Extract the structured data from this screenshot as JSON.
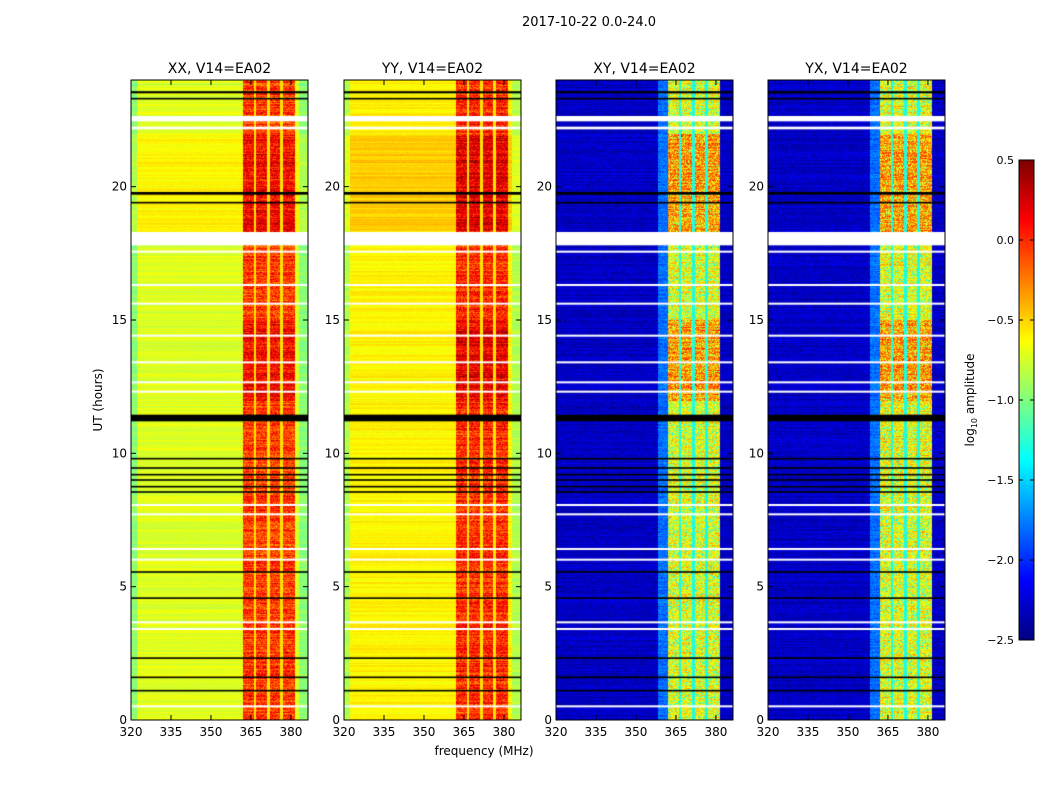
{
  "suptitle": "2017-10-22 0.0-24.0",
  "chart_data": {
    "type": "heatmap",
    "xlabel": "frequency (MHz)",
    "ylabel": "UT (hours)",
    "xlim": [
      320,
      386.4
    ],
    "ylim": [
      0,
      24
    ],
    "xticks": [
      320,
      335,
      350,
      365,
      380
    ],
    "xtick_labels": [
      "320",
      "335",
      "350",
      "365",
      "380"
    ],
    "yticks": [
      0,
      5,
      10,
      15,
      20
    ],
    "ytick_labels": [
      "0",
      "5",
      "10",
      "15",
      "20"
    ],
    "panels": [
      {
        "title": "XX, V14=EA02",
        "base_level": -0.72,
        "band_level": -0.05,
        "quiet_base": true
      },
      {
        "title": "YY, V14=EA02",
        "base_level": -0.6,
        "band_level": 0.0,
        "quiet_base": true
      },
      {
        "title": "XY, V14=EA02",
        "base_level": -2.3,
        "band_level": -0.6,
        "quiet_base": false
      },
      {
        "title": "YX, V14=EA02",
        "base_level": -2.3,
        "band_level": -0.6,
        "quiet_base": false
      }
    ],
    "band_MHz": [
      362,
      381.5
    ],
    "band_gaps_MHz": [
      366.3,
      371.3,
      376.2
    ],
    "flagged_hours_white": [
      [
        22.45,
        22.65
      ],
      [
        22.15,
        22.25
      ],
      [
        17.8,
        18.3
      ],
      [
        17.55,
        17.6
      ],
      [
        16.3,
        16.35
      ],
      [
        15.6,
        15.65
      ],
      [
        14.4,
        14.45
      ],
      [
        13.4,
        13.45
      ],
      [
        12.65,
        12.7
      ],
      [
        12.3,
        12.35
      ],
      [
        8.05,
        8.1
      ],
      [
        7.7,
        7.75
      ],
      [
        6.4,
        6.45
      ],
      [
        6.0,
        6.05
      ],
      [
        3.65,
        3.7
      ],
      [
        3.4,
        3.45
      ],
      [
        0.5,
        0.55
      ]
    ],
    "flagged_hours_black": [
      [
        23.5,
        23.58
      ],
      [
        23.27,
        23.33
      ],
      [
        19.7,
        19.8
      ],
      [
        19.37,
        19.43
      ],
      [
        11.2,
        11.45
      ],
      [
        9.77,
        9.83
      ],
      [
        9.42,
        9.48
      ],
      [
        9.17,
        9.23
      ],
      [
        8.97,
        9.03
      ],
      [
        8.72,
        8.78
      ],
      [
        8.52,
        8.58
      ],
      [
        5.52,
        5.58
      ],
      [
        4.54,
        4.6
      ],
      [
        2.29,
        2.35
      ],
      [
        1.57,
        1.63
      ],
      [
        1.07,
        1.13
      ]
    ],
    "enhanced_periods_hours": [
      [
        12.0,
        15.0
      ],
      [
        18.3,
        22.0
      ]
    ],
    "colorbar": {
      "label": "log10 amplitude",
      "range": [
        -2.5,
        0.5
      ],
      "ticks": [
        0.5,
        0.0,
        -0.5,
        -1.0,
        -1.5,
        -2.0,
        -2.5
      ],
      "tick_labels": [
        "0.5",
        "0.0",
        "−0.5",
        "−1.0",
        "−1.5",
        "−2.0",
        "−2.5"
      ],
      "colormap": "jet"
    }
  }
}
